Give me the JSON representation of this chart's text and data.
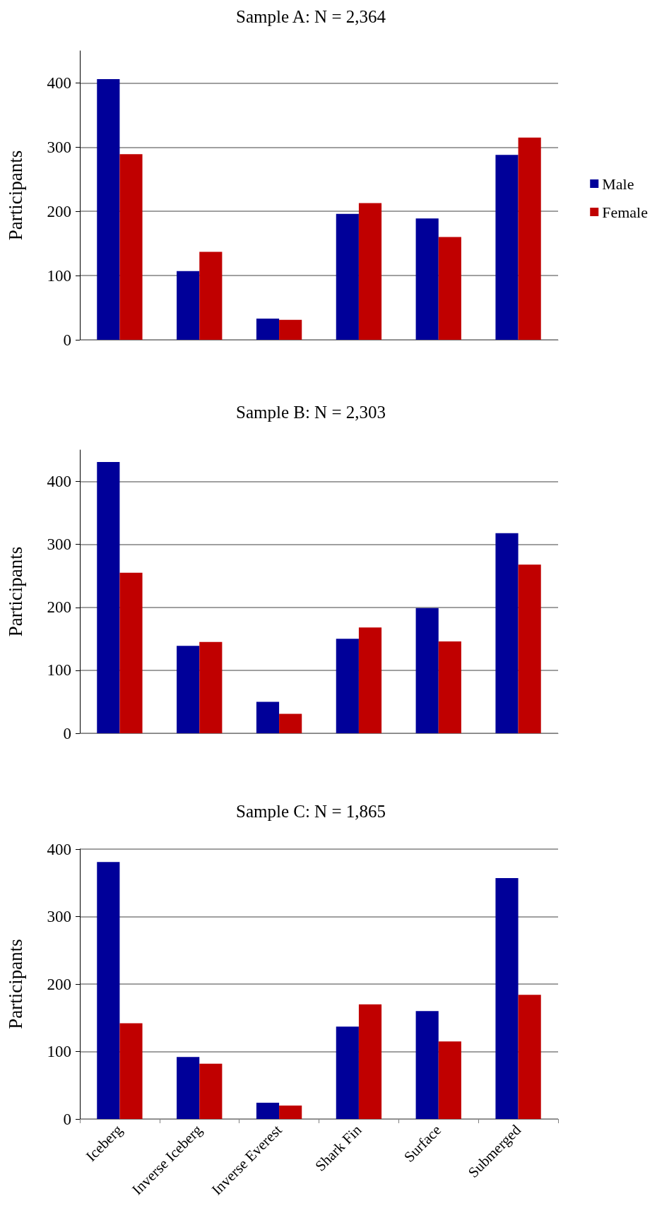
{
  "chart_data": [
    {
      "type": "bar",
      "title": "Sample A: N = 2,364",
      "ylabel": "Participants",
      "categories": [
        null,
        null,
        null,
        null,
        null,
        null
      ],
      "series": [
        {
          "name": "Male",
          "color": "#000099",
          "values": [
            406,
            107,
            33,
            196,
            189,
            288
          ]
        },
        {
          "name": "Female",
          "color": "#c00000",
          "values": [
            289,
            137,
            31,
            213,
            160,
            315
          ]
        }
      ],
      "ylim": [
        0,
        450
      ],
      "yticks": [
        0,
        100,
        200,
        300,
        400
      ],
      "grid": "y",
      "legend": "right",
      "tick_labels": "y"
    },
    {
      "type": "bar",
      "title": "Sample B: N = 2,303",
      "ylabel": "Participants",
      "categories": [
        null,
        null,
        null,
        null,
        null,
        null
      ],
      "series": [
        {
          "color": "#000099",
          "values": [
            431,
            139,
            50,
            150,
            199,
            318
          ]
        },
        {
          "color": "#c00000",
          "values": [
            255,
            145,
            31,
            168,
            146,
            268
          ]
        }
      ],
      "ylim": [
        0,
        450
      ],
      "yticks": [
        0,
        100,
        200,
        300,
        400
      ],
      "grid": "y",
      "tick_labels": "y"
    },
    {
      "type": "bar",
      "title": "Sample C: N = 1,865",
      "ylabel": "Participants",
      "categories": [
        "Iceberg",
        "Inverse Iceberg",
        "Inverse Everest",
        "Shark Fin",
        "Surface",
        "Submerged"
      ],
      "series": [
        {
          "color": "#000099",
          "values": [
            381,
            92,
            24,
            137,
            160,
            357
          ]
        },
        {
          "color": "#c00000",
          "values": [
            142,
            82,
            20,
            170,
            115,
            184
          ]
        }
      ],
      "ylim": [
        0,
        400
      ],
      "yticks": [
        0,
        100,
        200,
        300,
        400
      ],
      "grid": "y"
    }
  ]
}
